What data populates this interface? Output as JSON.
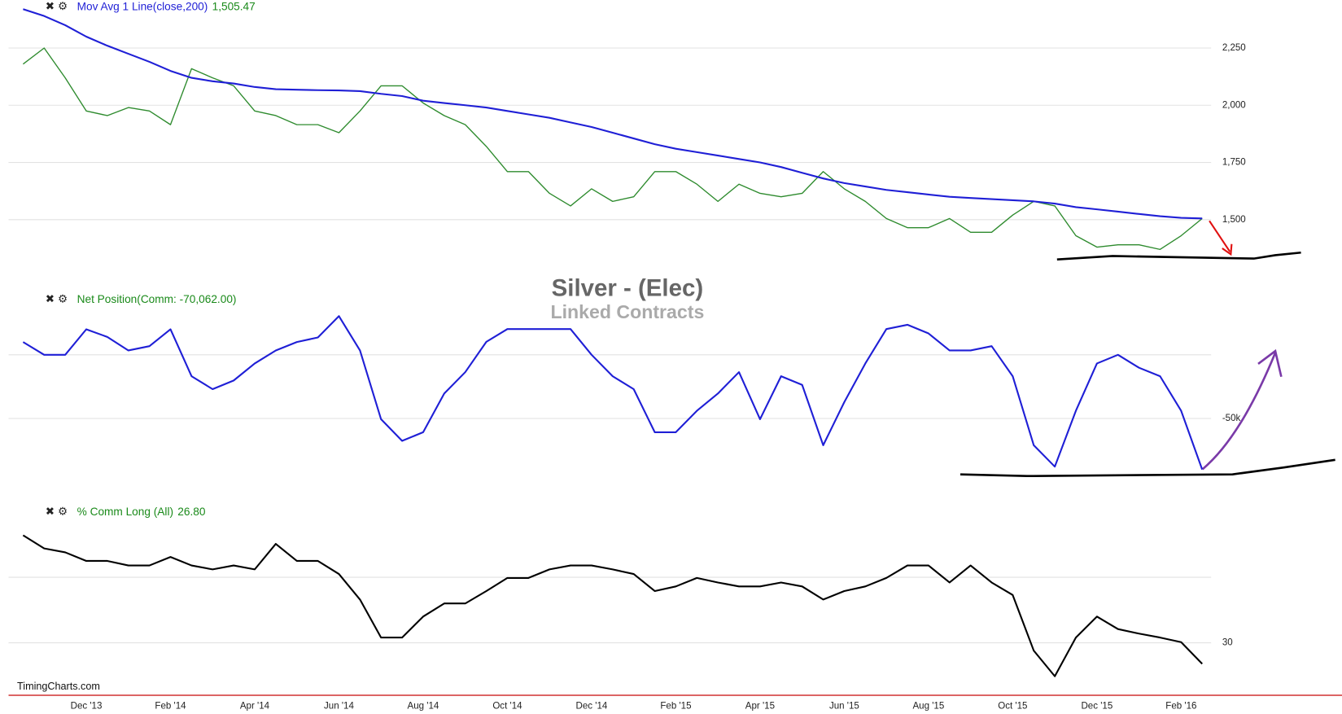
{
  "title": "Silver - (Elec)",
  "subtitle": "Linked Contracts",
  "watermark": "TimingCharts.com",
  "chart_data": [
    {
      "type": "line",
      "series": [
        {
          "color": "#2e8b2e",
          "values": [
            2180,
            2250,
            2120,
            1975,
            1955,
            1990,
            1975,
            1915,
            2160,
            2120,
            2085,
            1975,
            1955,
            1915,
            1915,
            1880,
            1975,
            2085,
            2085,
            2010,
            1955,
            1915,
            1820,
            1710,
            1710,
            1615,
            1560,
            1635,
            1580,
            1600,
            1710,
            1710,
            1655,
            1580,
            1655,
            1615,
            1600,
            1615,
            1710,
            1635,
            1580,
            1505,
            1465,
            1465,
            1505,
            1445,
            1445,
            1520,
            1580,
            1560,
            1430,
            1380,
            1390,
            1390,
            1370,
            1430,
            1505
          ]
        },
        {
          "name": "Mov Avg 1 Line(close,200)",
          "color": "#1f1fd6",
          "last_value": "1,505.47",
          "values": [
            2420,
            2390,
            2350,
            2300,
            2260,
            2225,
            2190,
            2150,
            2120,
            2105,
            2095,
            2080,
            2070,
            2068,
            2066,
            2065,
            2062,
            2050,
            2040,
            2020,
            2010,
            2000,
            1990,
            1975,
            1960,
            1945,
            1925,
            1905,
            1880,
            1855,
            1830,
            1810,
            1795,
            1780,
            1765,
            1750,
            1730,
            1705,
            1680,
            1660,
            1645,
            1630,
            1620,
            1610,
            1600,
            1595,
            1590,
            1585,
            1580,
            1570,
            1555,
            1545,
            1535,
            1525,
            1515,
            1508,
            1505.47
          ]
        }
      ],
      "ylim": [
        1300,
        2460
      ],
      "yticks": [
        {
          "value": 1500,
          "label": "1,500"
        },
        {
          "value": 1750,
          "label": "1,750"
        },
        {
          "value": 2000,
          "label": "2,000"
        },
        {
          "value": 2250,
          "label": "2,250"
        }
      ],
      "grid": true
    },
    {
      "type": "line",
      "series": [
        {
          "name": "Net Position(Comm: -70,062.00)",
          "color": "#1f1fd6",
          "values": [
            -20000,
            -25000,
            -25000,
            -15000,
            -18000,
            -23300,
            -21600,
            -15000,
            -33400,
            -38500,
            -35100,
            -28400,
            -23300,
            -20000,
            -18200,
            -9800,
            -23300,
            -50300,
            -58800,
            -55400,
            -40200,
            -31800,
            -19900,
            -14900,
            -14900,
            -14900,
            -14900,
            -25000,
            -33400,
            -38500,
            -55400,
            -55400,
            -47000,
            -40200,
            -31800,
            -50300,
            -33400,
            -36800,
            -60500,
            -43600,
            -28400,
            -14900,
            -13200,
            -16600,
            -23300,
            -23300,
            -21600,
            -33400,
            -60500,
            -68900,
            -47000,
            -28400,
            -25000,
            -30100,
            -33400,
            -47000,
            -70062
          ]
        }
      ],
      "ylim": [
        -79000,
        0
      ],
      "yticks": [
        {
          "value": -25000,
          "label": null
        },
        {
          "value": -50000,
          "label": "-50k"
        }
      ],
      "grid": true
    },
    {
      "type": "line",
      "categories": [
        null,
        null,
        null,
        "Dec '13",
        null,
        null,
        null,
        "Feb '14",
        null,
        null,
        null,
        "Apr '14",
        null,
        null,
        null,
        "Jun '14",
        null,
        null,
        null,
        "Aug '14",
        null,
        null,
        null,
        "Oct '14",
        null,
        null,
        null,
        "Dec '14",
        null,
        null,
        null,
        "Feb '15",
        null,
        null,
        null,
        "Apr '15",
        null,
        null,
        null,
        "Jun '15",
        null,
        null,
        null,
        "Aug '15",
        null,
        null,
        null,
        "Oct '15",
        null,
        null,
        null,
        "Dec '15",
        null,
        null,
        null,
        "Feb '16",
        null
      ],
      "series": [
        {
          "name": "% Comm Long (All)",
          "color": "#000000",
          "last_value": "26.80",
          "values": [
            46.4,
            44.4,
            43.8,
            42.5,
            42.5,
            41.8,
            41.8,
            43.1,
            41.8,
            41.2,
            41.8,
            41.2,
            45.1,
            42.5,
            42.5,
            40.5,
            36.6,
            30.8,
            30.8,
            34.0,
            36.0,
            36.0,
            37.9,
            39.9,
            39.9,
            41.2,
            41.8,
            41.8,
            41.2,
            40.5,
            37.9,
            38.6,
            39.9,
            39.2,
            38.6,
            38.6,
            39.2,
            38.6,
            36.6,
            37.9,
            38.6,
            39.9,
            41.8,
            41.8,
            39.2,
            41.8,
            39.2,
            37.3,
            28.8,
            24.9,
            30.8,
            34.0,
            32.1,
            31.4,
            30.8,
            30.1,
            26.8
          ]
        }
      ],
      "ylim": [
        22,
        51
      ],
      "yticks": [
        {
          "value": 40,
          "label": null
        },
        30
      ],
      "grid": true
    }
  ]
}
